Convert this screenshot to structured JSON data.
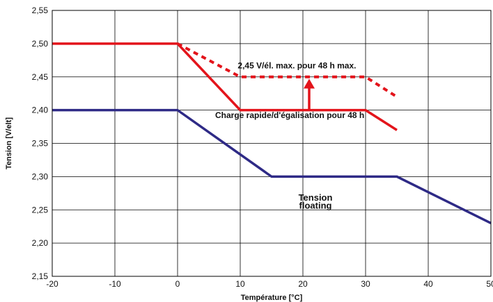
{
  "chart_data": {
    "type": "line",
    "xlabel": "Température [°C]",
    "ylabel": "Tension [V/elt]",
    "xlim": [
      -20,
      50
    ],
    "ylim": [
      2.15,
      2.55
    ],
    "x_ticks": [
      -20,
      -10,
      0,
      10,
      20,
      30,
      40,
      50
    ],
    "x_tick_labels": [
      "-20",
      "-10",
      "0",
      "10",
      "20",
      "30",
      "40",
      "50"
    ],
    "y_ticks": [
      2.15,
      2.2,
      2.25,
      2.3,
      2.35,
      2.4,
      2.45,
      2.5,
      2.55
    ],
    "y_tick_labels": [
      "2,15",
      "2,20",
      "2,25",
      "2,30",
      "2,35",
      "2,40",
      "2,45",
      "2,50",
      "2,55"
    ],
    "grid": true,
    "series": [
      {
        "style": "solid",
        "color": "#e3141b",
        "x": [
          -20,
          0,
          10,
          30,
          35
        ],
        "y": [
          2.5,
          2.5,
          2.4,
          2.4,
          2.37
        ]
      },
      {
        "style": "dashed",
        "color": "#e3141b",
        "x": [
          0,
          10,
          30,
          35
        ],
        "y": [
          2.5,
          2.45,
          2.45,
          2.42
        ]
      },
      {
        "style": "solid",
        "color": "#2e2a86",
        "x": [
          -20,
          0,
          15,
          35,
          50
        ],
        "y": [
          2.4,
          2.4,
          2.3,
          2.3,
          2.23
        ]
      }
    ],
    "annotations": [
      {
        "text": "2,45 V/él. max. pour 48 h max.",
        "x": 28.5,
        "y": 2.463,
        "anchor": "end"
      },
      {
        "text": "Charge rapide/d'égalisation pour 48 h",
        "x": 6,
        "y": 2.388,
        "anchor": "start"
      },
      {
        "text": "Tension",
        "x": 22,
        "y": 2.264,
        "anchor": "middle"
      },
      {
        "text": "floating",
        "x": 22,
        "y": 2.252,
        "anchor": "middle"
      }
    ],
    "arrow": {
      "x": 21,
      "y_from": 2.4,
      "y_to": 2.445,
      "color": "#e3141b"
    }
  }
}
